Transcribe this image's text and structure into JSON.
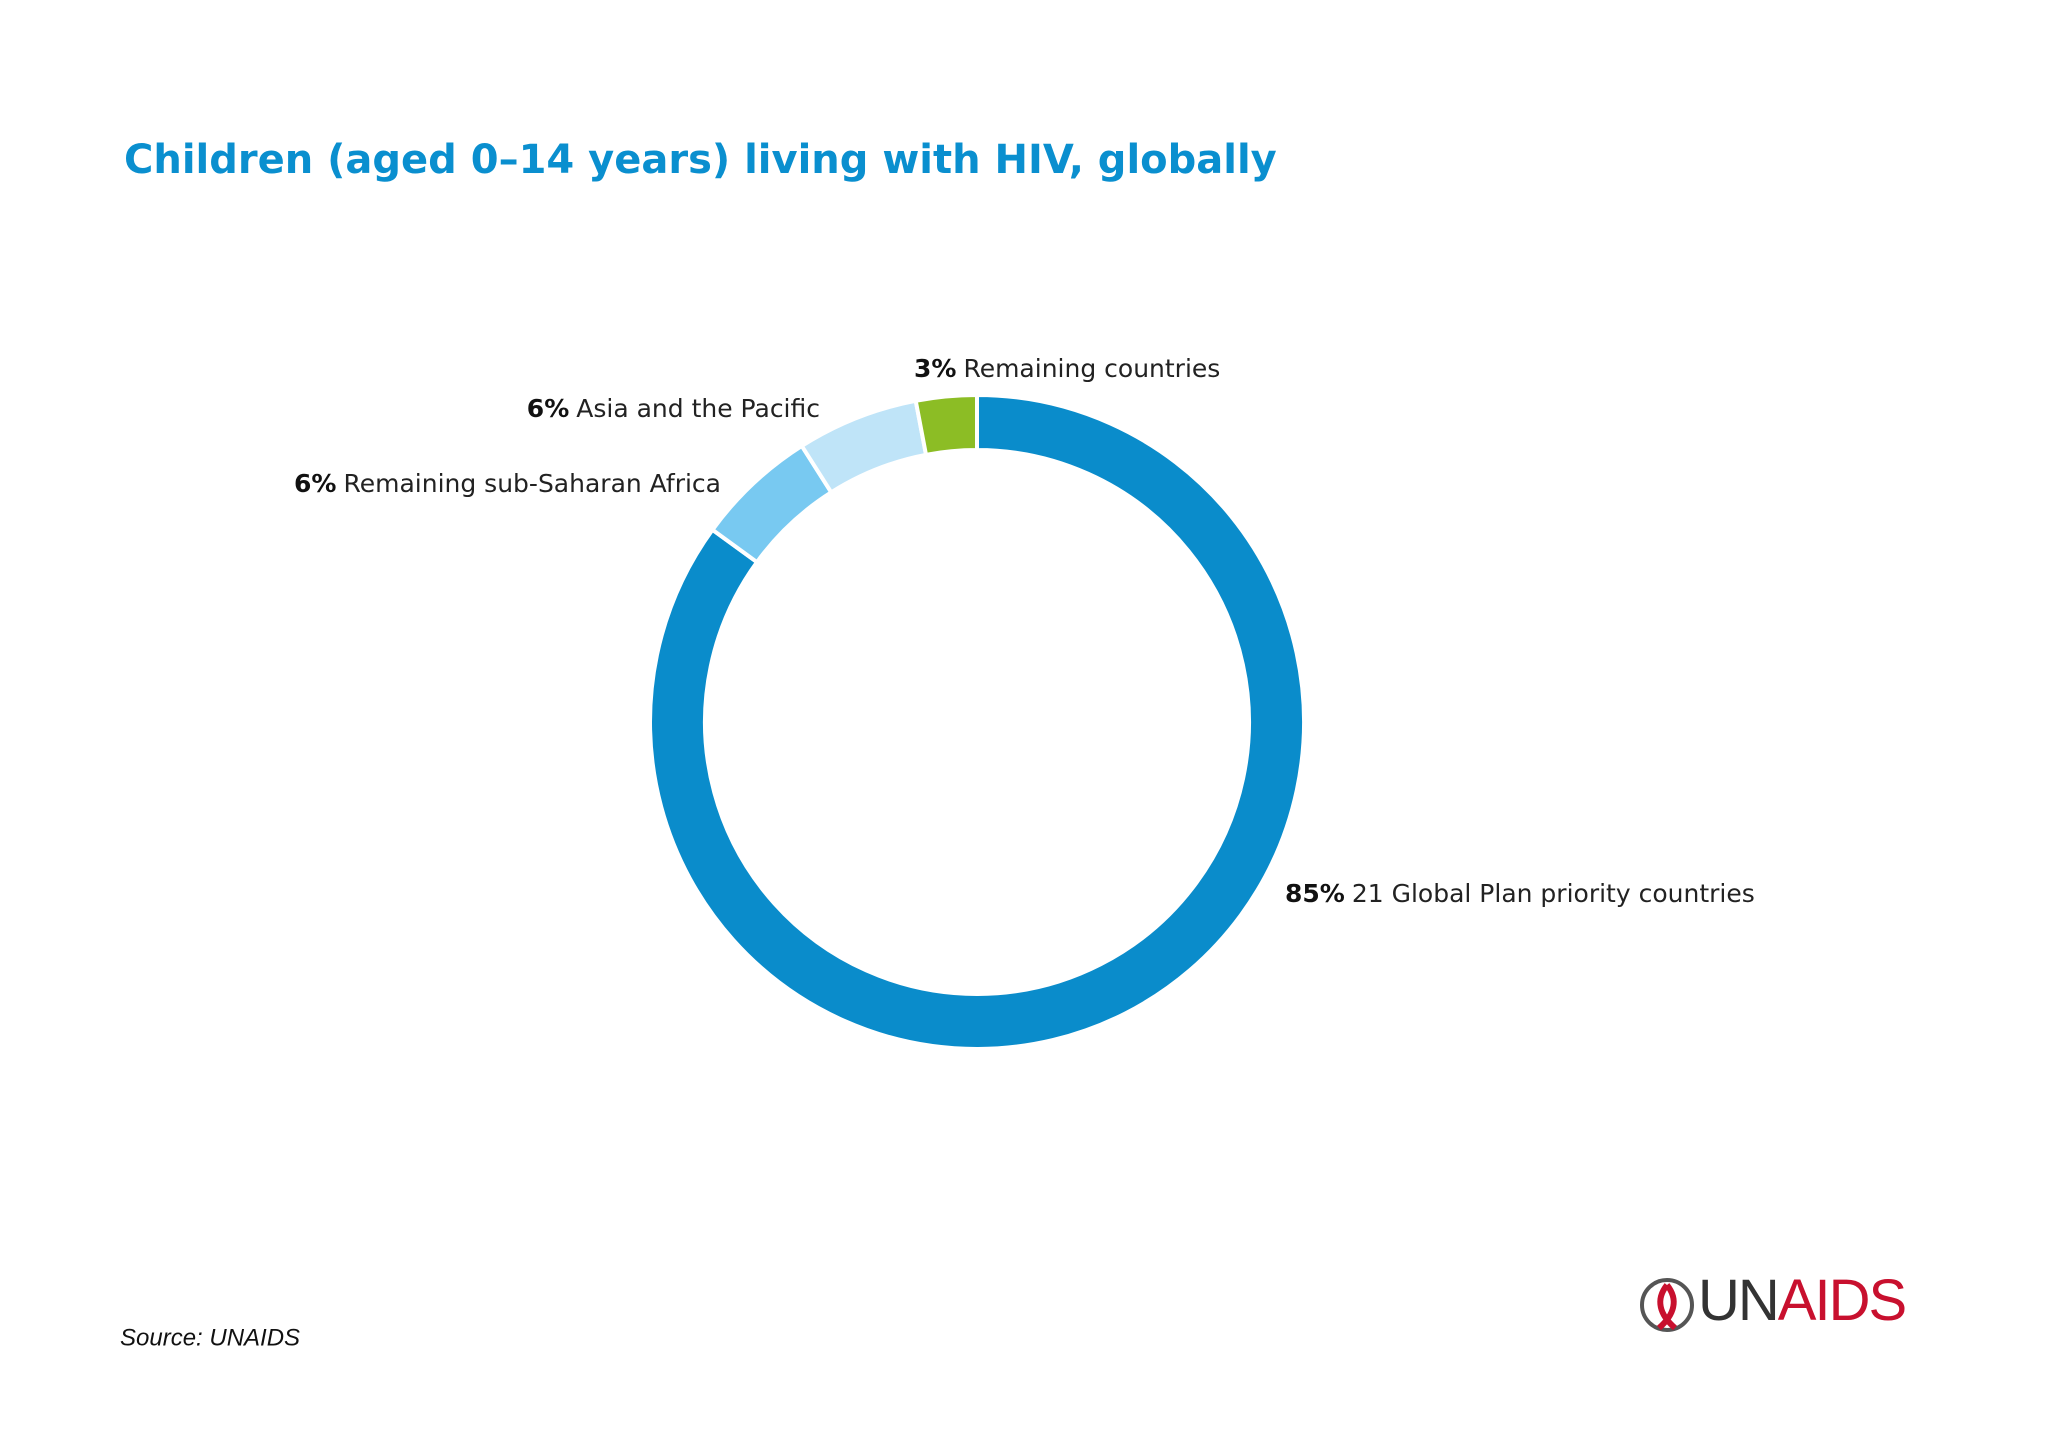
{
  "chart_data": {
    "type": "donut",
    "title": "Children (aged 0–14 years) living with HIV, globally",
    "categories": [
      "21 Global Plan priority countries",
      "Remaining sub-Saharan Africa",
      "Asia and the Pacific",
      "Remaining countries"
    ],
    "values": [
      85,
      6,
      6,
      3
    ],
    "value_labels": [
      "85%",
      "6%",
      "6%",
      "3%"
    ],
    "colors": [
      "#0a8ccb",
      "#78c9f1",
      "#bfe4f8",
      "#8cbd25"
    ]
  },
  "source": "Source: UNAIDS",
  "logo": "UNAIDS"
}
